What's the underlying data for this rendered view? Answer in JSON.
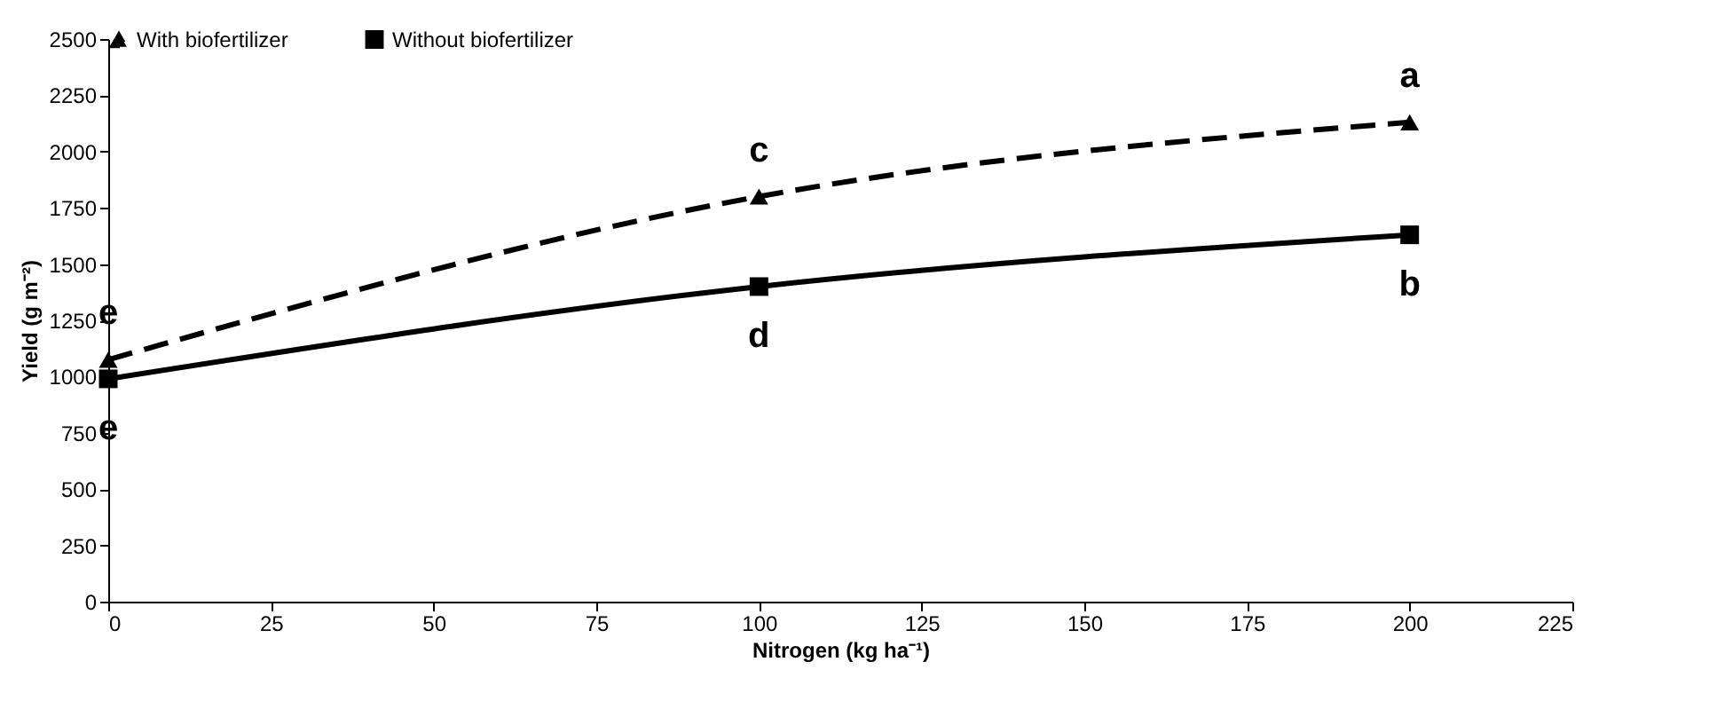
{
  "chart_data": {
    "type": "line",
    "xlabel": "Nitrogen (kg ha⁻¹)",
    "ylabel": "Yield (g m⁻²)",
    "x": [
      0,
      100,
      200
    ],
    "series": [
      {
        "name": "With biofertilizer",
        "color": "#000000",
        "line_style": "dashed",
        "marker": "triangle",
        "values": [
          1075,
          1800,
          2130
        ]
      },
      {
        "name": "Without biofertilizer",
        "color": "#000000",
        "line_style": "solid",
        "marker": "square",
        "values": [
          990,
          1400,
          1630
        ]
      }
    ],
    "xlim": [
      0,
      225
    ],
    "xticks": [
      0,
      25,
      50,
      75,
      100,
      125,
      150,
      175,
      200,
      225
    ],
    "ylim": [
      0,
      2500
    ],
    "yticks": [
      0,
      250,
      500,
      750,
      1000,
      1250,
      1500,
      1750,
      2000,
      2250,
      2500
    ],
    "grid": false,
    "legend": "top",
    "annotations": [
      {
        "text": "e",
        "x": 0,
        "y": 1075
      },
      {
        "text": "c",
        "x": 100,
        "y": 1800
      },
      {
        "text": "a",
        "x": 200,
        "y": 2130
      },
      {
        "text": "e",
        "x": 0,
        "y": 990
      },
      {
        "text": "d",
        "x": 100,
        "y": 1400
      },
      {
        "text": "b",
        "x": 200,
        "y": 1630
      }
    ]
  }
}
